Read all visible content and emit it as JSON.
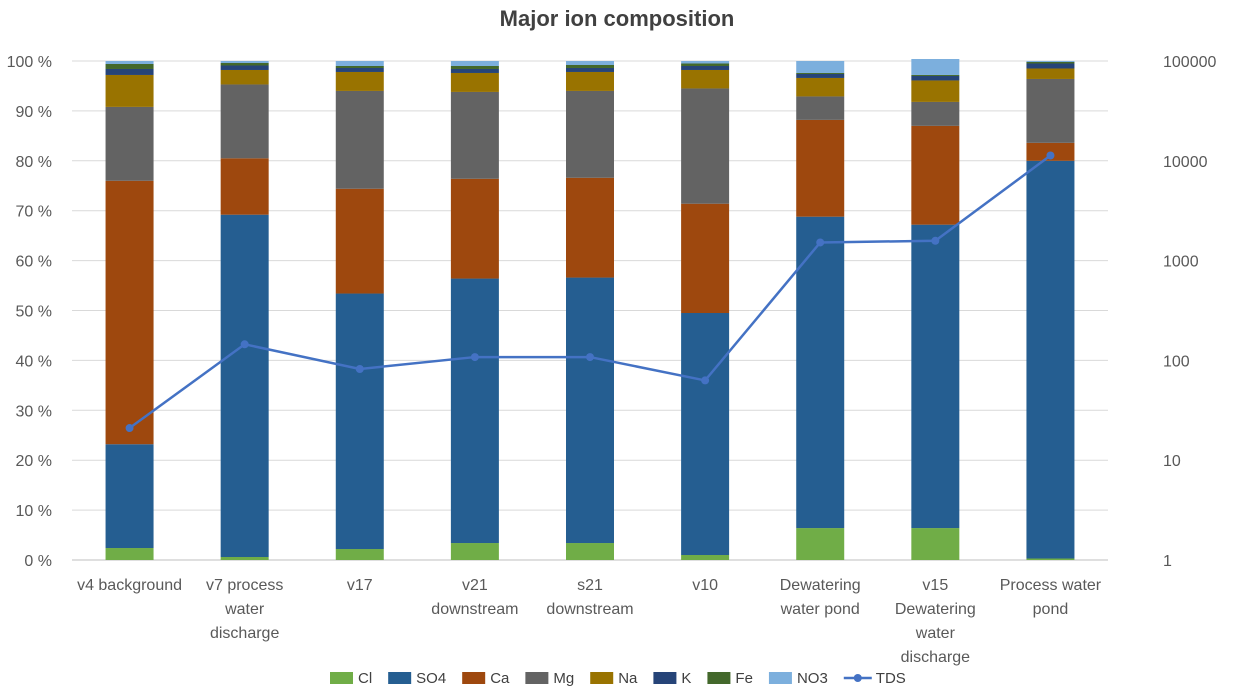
{
  "chart_data": {
    "type": "bar",
    "stacked": true,
    "title": "Major ion composition",
    "categories": [
      "v4 background",
      "v7 process water discharge",
      "v17",
      "v21 downstream",
      "s21 downstream",
      "v10",
      "Dewatering water pond",
      "v15 Dewatering water discharge",
      "Process water pond"
    ],
    "category_lines": [
      [
        "v4 background"
      ],
      [
        "v7 process",
        "water",
        "discharge"
      ],
      [
        "v17"
      ],
      [
        "v21",
        "downstream"
      ],
      [
        "s21",
        "downstream"
      ],
      [
        "v10"
      ],
      [
        "Dewatering",
        "water pond"
      ],
      [
        "v15",
        "Dewatering",
        "water",
        "discharge"
      ],
      [
        "Process water",
        "pond"
      ]
    ],
    "y_left": {
      "ylim": [
        0,
        100
      ],
      "ticks": [
        "0 %",
        "10 %",
        "20 %",
        "30 %",
        "40 %",
        "50 %",
        "60 %",
        "70 %",
        "80 %",
        "90 %",
        "100 %"
      ]
    },
    "y_right": {
      "scale": "log",
      "ylim": [
        1,
        100000
      ],
      "ticks": [
        "1",
        "10",
        "100",
        "1000",
        "10000",
        "100000"
      ]
    },
    "grid": true,
    "legend_position": "bottom",
    "series": [
      {
        "name": "Cl",
        "color": "#70AD47",
        "values": [
          2.4,
          0.6,
          2.2,
          3.4,
          3.4,
          1.0,
          6.4,
          6.4,
          0.3
        ]
      },
      {
        "name": "SO4",
        "color": "#255E91",
        "values": [
          20.8,
          68.6,
          51.2,
          53.0,
          53.2,
          48.5,
          62.4,
          60.8,
          79.7
        ]
      },
      {
        "name": "Ca",
        "color": "#9E480E",
        "values": [
          52.8,
          11.3,
          21.0,
          20.0,
          20.0,
          21.9,
          19.4,
          19.8,
          3.6
        ]
      },
      {
        "name": "Mg",
        "color": "#636363",
        "values": [
          14.8,
          14.8,
          19.6,
          17.4,
          17.4,
          23.1,
          4.7,
          4.8,
          12.8
        ]
      },
      {
        "name": "Na",
        "color": "#997300",
        "values": [
          6.4,
          2.9,
          3.8,
          3.8,
          3.8,
          3.7,
          3.7,
          4.3,
          2.1
        ]
      },
      {
        "name": "K",
        "color": "#264478",
        "values": [
          1.2,
          0.9,
          0.8,
          0.8,
          0.8,
          0.8,
          0.8,
          0.9,
          1.0
        ]
      },
      {
        "name": "Fe",
        "color": "#43682B",
        "values": [
          1.0,
          0.5,
          0.4,
          0.6,
          0.6,
          0.5,
          0.2,
          0.2,
          0.3
        ]
      },
      {
        "name": "NO3",
        "color": "#7CAFDD",
        "values": [
          0.6,
          0.4,
          1.0,
          1.0,
          0.8,
          0.5,
          2.4,
          3.2,
          0.2
        ]
      }
    ],
    "line_series": {
      "name": "TDS",
      "color": "#4472C4",
      "axis": "right",
      "values": [
        21,
        145,
        82,
        108,
        108,
        63,
        1520,
        1580,
        11300
      ]
    }
  }
}
